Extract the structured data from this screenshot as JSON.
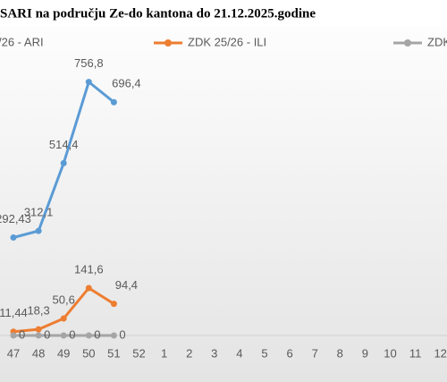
{
  "chart_data": {
    "type": "line",
    "title": "SARI na području Ze-do kantona do 21.12.2025.godine",
    "categories": [
      "47",
      "48",
      "49",
      "50",
      "51",
      "52",
      "1",
      "2",
      "3",
      "4",
      "5",
      "6",
      "7",
      "8",
      "9",
      "10",
      "11",
      "12"
    ],
    "series": [
      {
        "name": "/26 - ARI",
        "color": "#5b9bd5",
        "values": [
          292.43,
          312.1,
          514.4,
          756.8,
          696.4,
          null,
          null,
          null,
          null,
          null,
          null,
          null,
          null,
          null,
          null,
          null,
          null,
          null
        ],
        "value_labels": [
          "292,43",
          "312,1",
          "514,4",
          "756,8",
          "696,4",
          null,
          null,
          null,
          null,
          null,
          null,
          null,
          null,
          null,
          null,
          null,
          null,
          null
        ]
      },
      {
        "name": "ZDK 25/26 - ILI",
        "color": "#ed7d31",
        "values": [
          11.44,
          18.3,
          50.6,
          141.6,
          94.4,
          null,
          null,
          null,
          null,
          null,
          null,
          null,
          null,
          null,
          null,
          null,
          null,
          null
        ],
        "value_labels": [
          "11,44",
          "18,3",
          "50,6",
          "141,6",
          "94,4",
          null,
          null,
          null,
          null,
          null,
          null,
          null,
          null,
          null,
          null,
          null,
          null,
          null
        ]
      },
      {
        "name": "ZDK",
        "color": "#a5a5a5",
        "values": [
          0,
          0,
          0,
          0,
          0,
          null,
          null,
          null,
          null,
          null,
          null,
          null,
          null,
          null,
          null,
          null,
          null,
          null
        ]
      }
    ],
    "ylim": [
      0,
      900
    ]
  }
}
